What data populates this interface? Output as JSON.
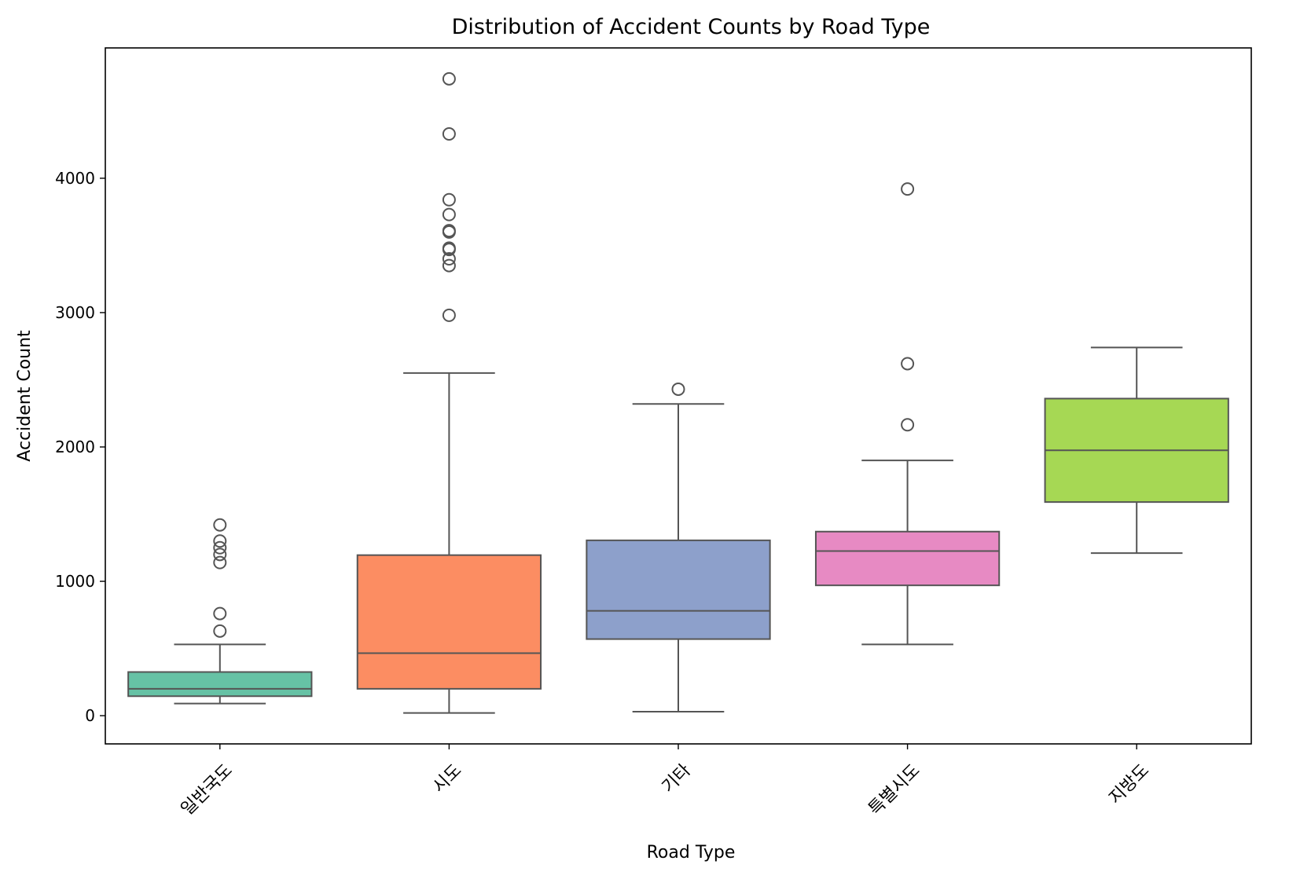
{
  "chart_data": {
    "type": "boxplot",
    "title": "Distribution of Accident Counts by Road Type",
    "xlabel": "Road Type",
    "ylabel": "Accident Count",
    "ylim": [
      -210,
      4970
    ],
    "yticks": [
      0,
      1000,
      2000,
      3000,
      4000
    ],
    "grid": false,
    "legend": "none",
    "categories": [
      "일반국도",
      "시도",
      "기타",
      "특별시도",
      "지방도"
    ],
    "boxes": [
      {
        "category": "일반국도",
        "whisker_low": 90,
        "q1": 145,
        "median": 200,
        "q3": 325,
        "whisker_high": 530,
        "outliers": [
          630,
          760,
          1140,
          1200,
          1250,
          1300,
          1420
        ],
        "color": "#66c2a5"
      },
      {
        "category": "시도",
        "whisker_low": 20,
        "q1": 200,
        "median": 465,
        "q3": 1195,
        "whisker_high": 2550,
        "outliers": [
          2980,
          3350,
          3400,
          3470,
          3480,
          3600,
          3610,
          3730,
          3840,
          4330,
          4740
        ],
        "color": "#fc8d62"
      },
      {
        "category": "기타",
        "whisker_low": 30,
        "q1": 570,
        "median": 780,
        "q3": 1305,
        "whisker_high": 2320,
        "outliers": [
          2430
        ],
        "color": "#8da0cb"
      },
      {
        "category": "특별시도",
        "whisker_low": 530,
        "q1": 970,
        "median": 1225,
        "q3": 1370,
        "whisker_high": 1900,
        "outliers": [
          2165,
          2620,
          3920
        ],
        "color": "#e78ac3"
      },
      {
        "category": "지방도",
        "whisker_low": 1210,
        "q1": 1590,
        "median": 1975,
        "q3": 2360,
        "whisker_high": 2740,
        "outliers": [],
        "color": "#a6d854"
      }
    ],
    "box_edge_color": "#555555",
    "outlier_marker": "open-circle"
  }
}
